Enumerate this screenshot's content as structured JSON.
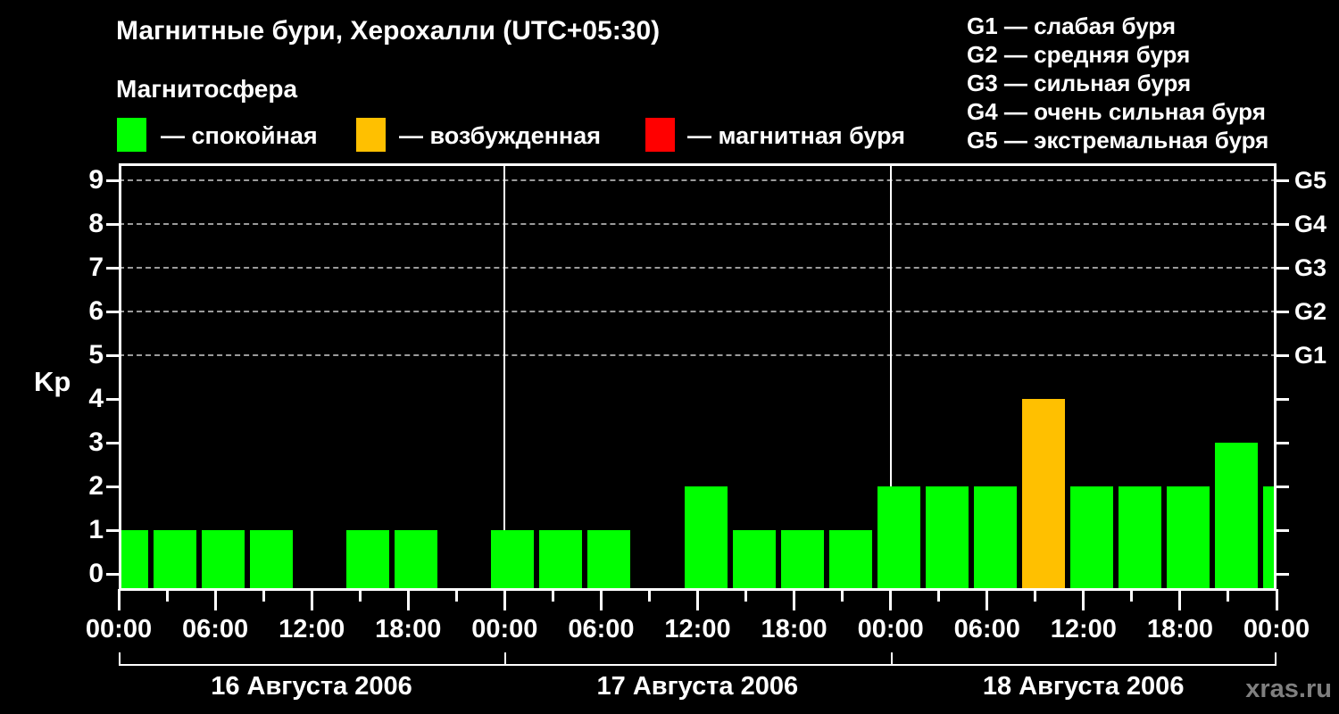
{
  "header": {
    "title": "Магнитные бури, Херохалли (UTC+05:30)",
    "subtitle": "Магнитосфера"
  },
  "legend": {
    "items": [
      {
        "name": "quiet",
        "label": "— спокойная",
        "color": "#00ff00"
      },
      {
        "name": "active",
        "label": "— возбужденная",
        "color": "#ffc000"
      },
      {
        "name": "storm",
        "label": "— магнитная буря",
        "color": "#ff0000"
      }
    ]
  },
  "storm_scale": {
    "separator": " — ",
    "items": [
      {
        "grade": "G1",
        "label": "слабая буря",
        "kp": 5
      },
      {
        "grade": "G2",
        "label": "средняя буря",
        "kp": 6
      },
      {
        "grade": "G3",
        "label": "сильная буря",
        "kp": 7
      },
      {
        "grade": "G4",
        "label": "очень сильная буря",
        "kp": 8
      },
      {
        "grade": "G5",
        "label": "экстремальная буря",
        "kp": 9
      }
    ]
  },
  "chart_data": {
    "type": "bar",
    "title": "Магнитные бури, Херохалли (UTC+05:30)",
    "ylabel": "Kp",
    "ylim": [
      0,
      9
    ],
    "yticks": [
      0,
      1,
      2,
      3,
      4,
      5,
      6,
      7,
      8,
      9
    ],
    "gridlines_at": [
      5,
      6,
      7,
      8,
      9
    ],
    "grid_style": "dashed",
    "interval_hours": 3,
    "x_major_tick_labels": [
      "00:00",
      "06:00",
      "12:00",
      "18:00"
    ],
    "closing_tick_label": "00:00",
    "days": [
      {
        "date_label": "16 Августа 2006",
        "kp_values": [
          1,
          1,
          1,
          1,
          0,
          1,
          1,
          0
        ]
      },
      {
        "date_label": "17 Августа 2006",
        "kp_values": [
          1,
          1,
          1,
          0,
          2,
          1,
          1,
          1
        ]
      },
      {
        "date_label": "18 Августа 2006",
        "kp_values": [
          2,
          2,
          2,
          4,
          2,
          2,
          2,
          3
        ]
      }
    ],
    "partial_next_day_kp": 2,
    "color_rule": {
      "quiet_max_kp": 3,
      "active_kp": 4,
      "storm_min_kp": 5
    },
    "colors": {
      "quiet": "#00ff00",
      "active": "#ffc000",
      "storm": "#ff0000"
    },
    "legend_position": "top-left",
    "right_axis_grades": [
      "G1",
      "G2",
      "G3",
      "G4",
      "G5"
    ]
  },
  "footer": {
    "watermark": "xras.ru"
  }
}
